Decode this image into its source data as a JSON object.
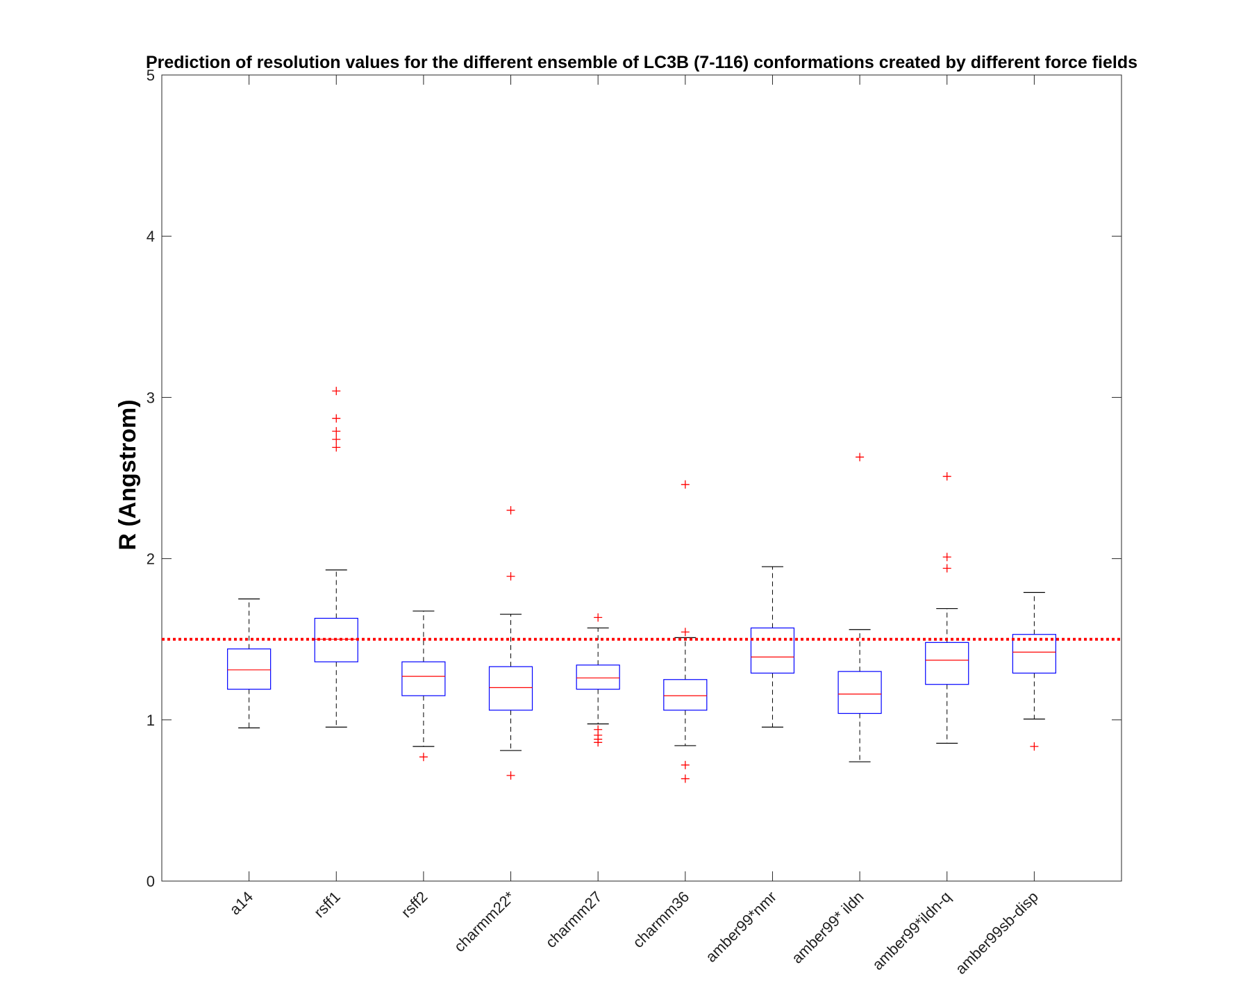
{
  "chart_data": {
    "type": "boxplot",
    "title": "Prediction of resolution values for the different ensemble of LC3B (7-116) conformations created by different force fields",
    "xlabel": "",
    "ylabel": "R (Angstrom)",
    "ylim": [
      0,
      5
    ],
    "yticks": [
      "0",
      "1",
      "2",
      "3",
      "4",
      "5"
    ],
    "reference_line": {
      "y": 1.5,
      "color": "#ff0000",
      "style": "dotted"
    },
    "categories": [
      "a14",
      "rsff1",
      "rsff2",
      "charmm22*",
      "charmm27",
      "charmm36",
      "amber99*nmr",
      "amber99* ildn",
      "amber99*ildn-q",
      "amber99sb-disp"
    ],
    "boxes": [
      {
        "whisker_low": 0.95,
        "q1": 1.19,
        "median": 1.31,
        "q3": 1.44,
        "whisker_high": 1.75,
        "outliers": []
      },
      {
        "whisker_low": 0.955,
        "q1": 1.36,
        "median": 1.5,
        "q3": 1.63,
        "whisker_high": 1.93,
        "outliers": [
          2.69,
          2.74,
          2.79,
          2.87,
          3.04
        ]
      },
      {
        "whisker_low": 0.835,
        "q1": 1.15,
        "median": 1.27,
        "q3": 1.36,
        "whisker_high": 1.675,
        "outliers": [
          0.77
        ]
      },
      {
        "whisker_low": 0.81,
        "q1": 1.06,
        "median": 1.2,
        "q3": 1.33,
        "whisker_high": 1.655,
        "outliers": [
          0.655,
          1.89,
          2.3
        ]
      },
      {
        "whisker_low": 0.975,
        "q1": 1.19,
        "median": 1.26,
        "q3": 1.34,
        "whisker_high": 1.57,
        "outliers": [
          0.86,
          0.88,
          0.905,
          0.94,
          1.635
        ]
      },
      {
        "whisker_low": 0.84,
        "q1": 1.06,
        "median": 1.15,
        "q3": 1.25,
        "whisker_high": 1.51,
        "outliers": [
          0.635,
          0.72,
          1.545,
          2.46
        ]
      },
      {
        "whisker_low": 0.955,
        "q1": 1.29,
        "median": 1.39,
        "q3": 1.57,
        "whisker_high": 1.95,
        "outliers": []
      },
      {
        "whisker_low": 0.74,
        "q1": 1.04,
        "median": 1.16,
        "q3": 1.3,
        "whisker_high": 1.56,
        "outliers": [
          2.63
        ]
      },
      {
        "whisker_low": 0.855,
        "q1": 1.22,
        "median": 1.37,
        "q3": 1.48,
        "whisker_high": 1.69,
        "outliers": [
          1.94,
          2.01,
          2.51
        ]
      },
      {
        "whisker_low": 1.005,
        "q1": 1.29,
        "median": 1.42,
        "q3": 1.53,
        "whisker_high": 1.79,
        "outliers": [
          0.835
        ]
      }
    ],
    "colors": {
      "box": "#0000ff",
      "median": "#ff0000",
      "whisker": "#000000",
      "outlier": "#ff0000",
      "axis": "#262626"
    },
    "grid": false,
    "legend": "none"
  }
}
